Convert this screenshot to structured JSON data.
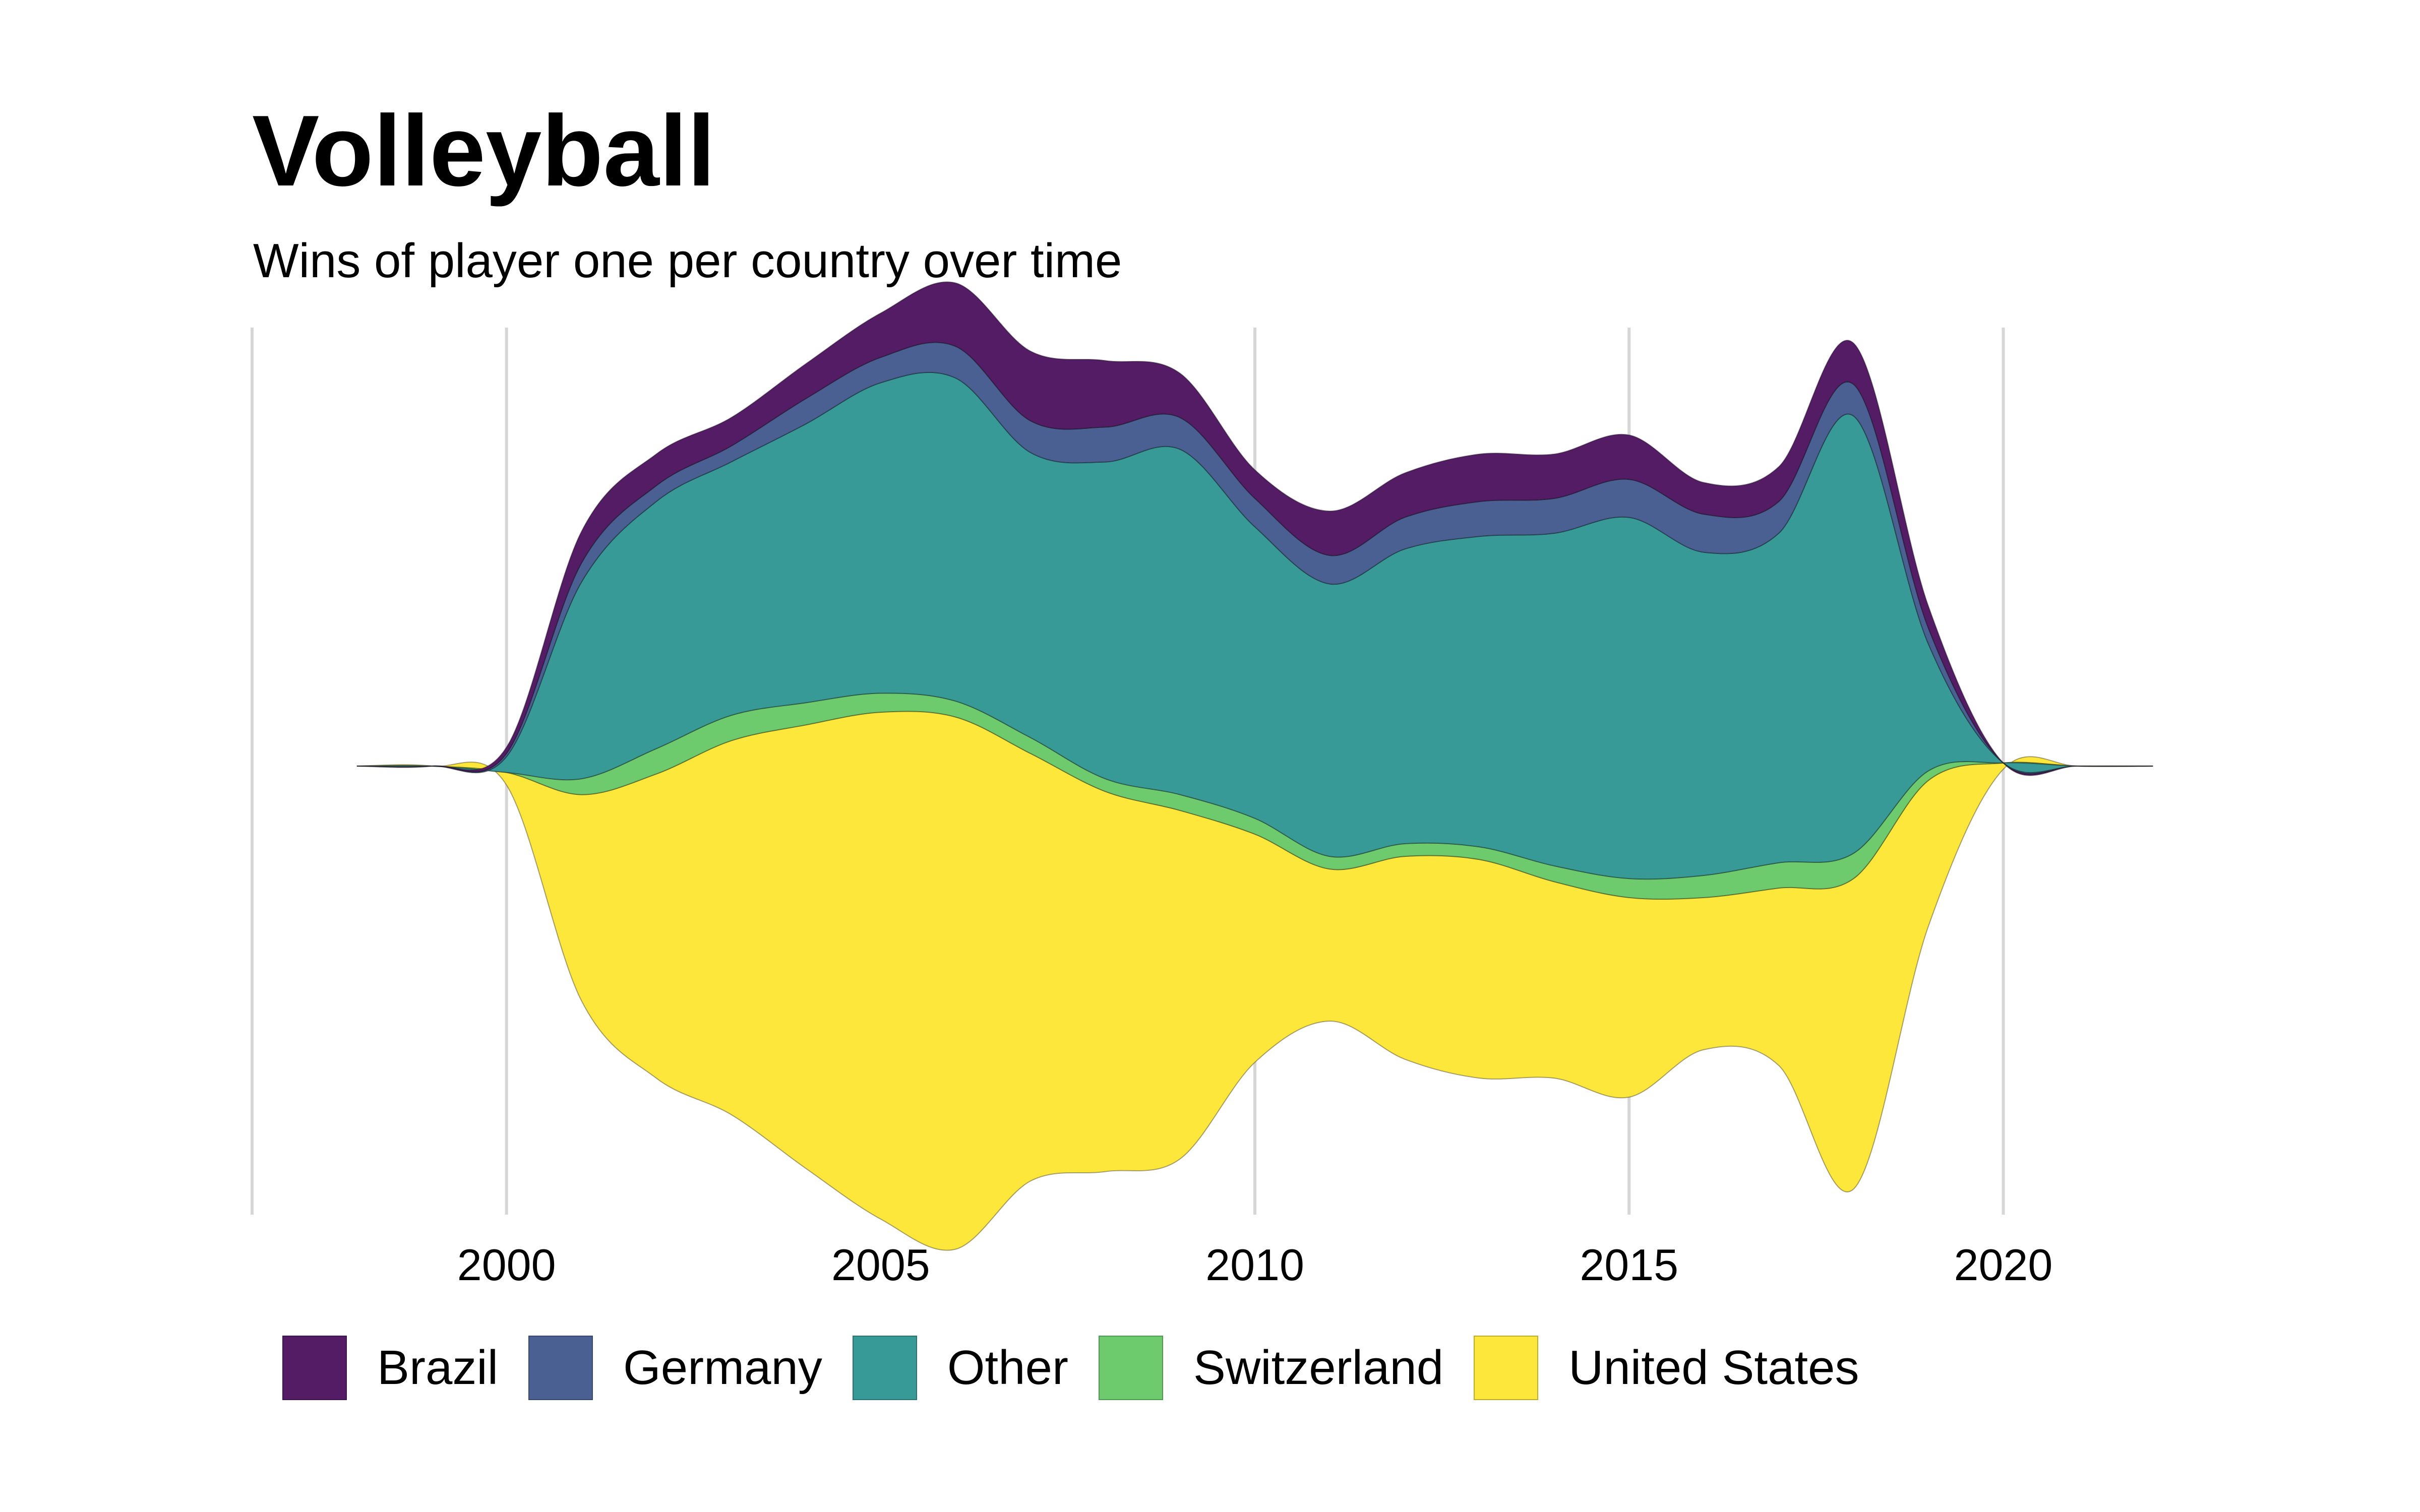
{
  "title": "Volleyball",
  "subtitle": "Wins of player one per country over time",
  "chart_data": {
    "type": "area",
    "style": "streamgraph",
    "x": [
      1998,
      1999,
      2000,
      2001,
      2002,
      2003,
      2004,
      2005,
      2006,
      2007,
      2008,
      2009,
      2010,
      2011,
      2012,
      2013,
      2014,
      2015,
      2016,
      2017,
      2018,
      2019,
      2020,
      2021,
      2022
    ],
    "xlim": [
      1996.6,
      2022.2
    ],
    "ylim": [
      -14,
      14
    ],
    "xticks": [
      2000,
      2005,
      2010,
      2015,
      2020
    ],
    "series": [
      {
        "name": "Brazil",
        "color": "#541c65",
        "values": [
          0,
          0,
          0.2,
          1.0,
          1.0,
          0.9,
          1.1,
          1.4,
          2.0,
          2.2,
          2.1,
          1.4,
          0.9,
          1.4,
          1.4,
          1.5,
          1.4,
          1.4,
          1.0,
          1.1,
          1.3,
          0.7,
          0,
          0,
          0
        ]
      },
      {
        "name": "Germany",
        "color": "#4a5f92",
        "values": [
          0,
          0,
          0.1,
          0.6,
          0.5,
          0.5,
          0.8,
          0.8,
          1.0,
          1.0,
          1.1,
          1.0,
          0.9,
          0.9,
          1.0,
          1.1,
          1.1,
          1.2,
          1.2,
          1.0,
          1.0,
          0.5,
          0,
          0,
          0
        ]
      },
      {
        "name": "Other",
        "color": "#389a96",
        "values": [
          0,
          0,
          0.5,
          6.2,
          7.8,
          8.0,
          8.8,
          9.8,
          10.2,
          9.0,
          10.0,
          10.9,
          9.2,
          8.6,
          9.3,
          9.8,
          10.5,
          11.4,
          10.2,
          10.4,
          13.8,
          4.0,
          0,
          0,
          0
        ]
      },
      {
        "name": "Switzerland",
        "color": "#6dcb6e",
        "values": [
          0,
          0,
          0,
          0.5,
          0.8,
          0.8,
          0.7,
          0.6,
          0.5,
          0.5,
          0.4,
          0.5,
          0.5,
          0.4,
          0.4,
          0.4,
          0.5,
          0.6,
          0.7,
          0.8,
          0.8,
          0.3,
          0,
          0,
          0
        ]
      },
      {
        "name": "United States",
        "color": "#fde73a",
        "values": [
          0,
          0,
          0.4,
          6.5,
          9.6,
          11.8,
          14.0,
          16.0,
          16.8,
          13.5,
          12.0,
          11.0,
          7.2,
          4.8,
          6.4,
          6.9,
          6.2,
          6.3,
          4.8,
          5.6,
          9.8,
          4.6,
          0.2,
          0,
          0
        ]
      }
    ],
    "grid": true,
    "legend_position": "bottom"
  }
}
